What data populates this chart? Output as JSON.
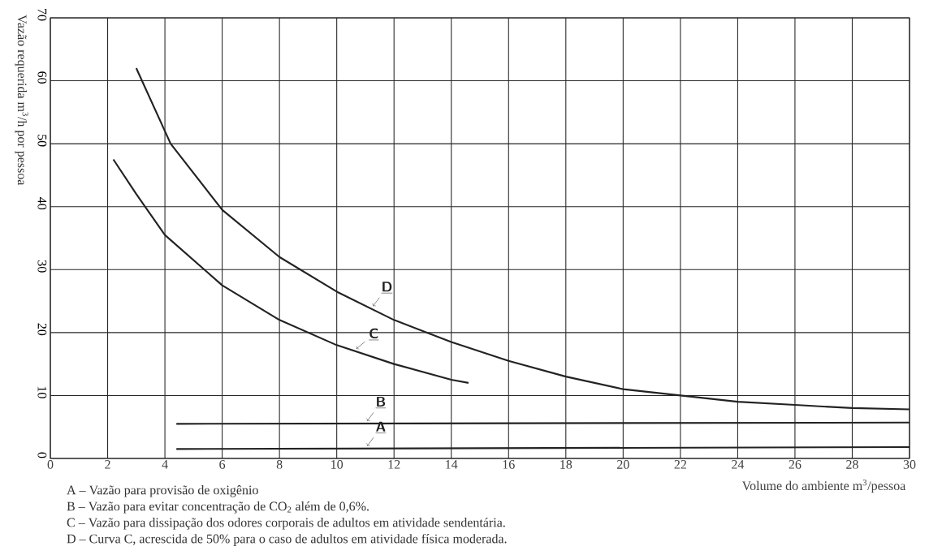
{
  "chart_data": {
    "type": "line",
    "xlabel": "Volume do ambiente m$^{3}$/pessoa",
    "ylabel": "Vazão requerida m$^{3}$/h por pessoa",
    "xlim": [
      0,
      30
    ],
    "ylim": [
      0,
      70
    ],
    "xticks": [
      0,
      2,
      4,
      6,
      8,
      10,
      12,
      14,
      16,
      18,
      20,
      22,
      24,
      26,
      28,
      30
    ],
    "yticks": [
      0,
      10,
      20,
      30,
      40,
      50,
      60,
      70
    ],
    "grid": true,
    "marker": "none",
    "line_style": "solid",
    "series": [
      {
        "name": "A",
        "color": "#222222",
        "x": [
          4.4,
          30
        ],
        "values": [
          1.5,
          1.8
        ]
      },
      {
        "name": "B",
        "color": "#222222",
        "x": [
          4.4,
          30
        ],
        "values": [
          5.5,
          5.7
        ]
      },
      {
        "name": "C",
        "color": "#222222",
        "x": [
          2.2,
          3,
          4,
          6,
          8,
          10,
          12,
          14,
          14.6
        ],
        "values": [
          47.5,
          42,
          35.5,
          27.5,
          22,
          18,
          15,
          12.5,
          12
        ]
      },
      {
        "name": "D",
        "color": "#222222",
        "x": [
          3,
          4.2,
          6,
          8,
          10,
          12,
          14,
          16,
          18,
          20,
          22,
          24,
          26,
          28,
          30
        ],
        "values": [
          62,
          50,
          39.5,
          32,
          26.5,
          22,
          18.5,
          15.5,
          13,
          11,
          10,
          9,
          8.5,
          8,
          7.8
        ]
      }
    ],
    "annotations": [
      "A – Vazão para provisão de oxigênio",
      "B – Vazão para evitar concentração de CO$_{2}$ além de 0,6%.",
      "C – Vazão para dissipação dos odores corporais de adultos em atividade sendentária.",
      "D – Curva C, acrescida de 50% para o caso de adultos em atividade física moderada."
    ]
  }
}
